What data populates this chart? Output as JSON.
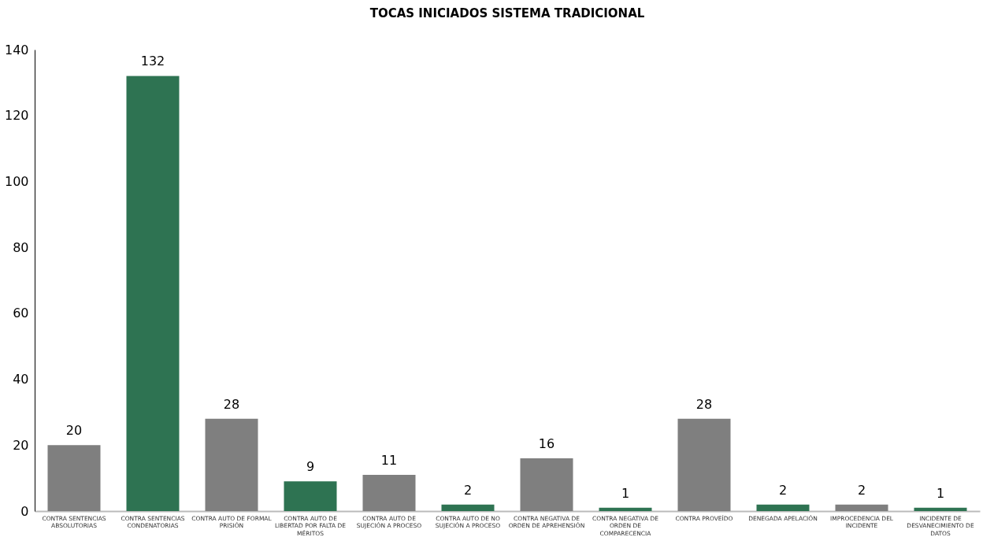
{
  "chart_data": {
    "type": "bar",
    "title": "TOCAS INICIADOS SISTEMA TRADICIONAL",
    "categories": [
      "CONTRA SENTENCIAS ABSOLUTORIAS",
      "CONTRA SENTENCIAS CONDENATORIAS",
      "CONTRA AUTO DE FORMAL PRISIÓN",
      "CONTRA AUTO DE LIBERTAD POR FALTA DE MÉRITOS",
      "CONTRA AUTO DE SUJECIÓN A PROCESO",
      "CONTRA AUTO DE NO SUJECIÓN A PROCESO",
      "CONTRA NEGATIVA DE ORDEN DE APREHENSIÓN",
      "CONTRA NEGATIVA DE ORDEN DE COMPARECENCIA",
      "CONTRA PROVEÍDO",
      "DENEGADA APELACIÓN",
      "IMPROCEDENCIA DEL INCIDENTE",
      "INCIDENTE DE DESVANECIMIENTO DE DATOS"
    ],
    "values": [
      20,
      132,
      28,
      9,
      11,
      2,
      16,
      1,
      28,
      2,
      2,
      1
    ],
    "colors": [
      "#7f7f7f",
      "#2e7352",
      "#7f7f7f",
      "#2e7352",
      "#7f7f7f",
      "#2e7352",
      "#7f7f7f",
      "#2e7352",
      "#7f7f7f",
      "#2e7352",
      "#7f7f7f",
      "#2e7352"
    ],
    "ylim": [
      0,
      140
    ],
    "yticks": [
      0,
      20,
      40,
      60,
      80,
      100,
      120,
      140
    ],
    "grid": false,
    "data_labels": true
  }
}
